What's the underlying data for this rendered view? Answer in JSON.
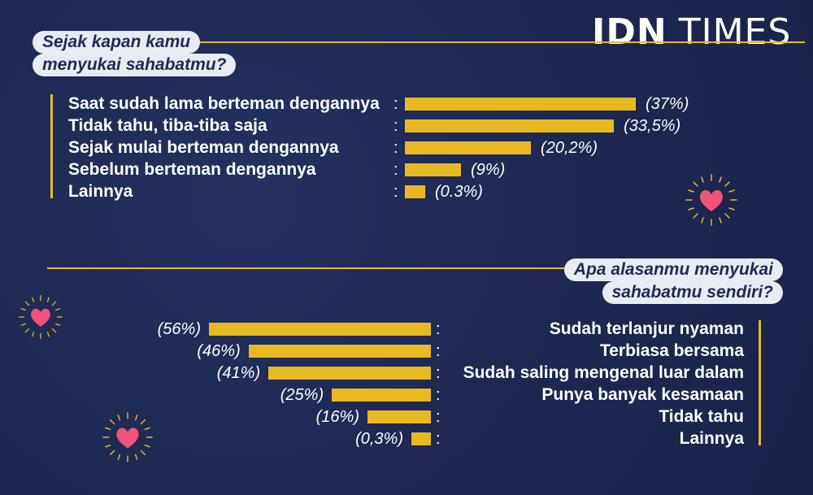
{
  "brand": {
    "logo_part1": "IDN",
    "logo_part2": "TIMES"
  },
  "chart_data": [
    {
      "type": "bar",
      "title": "Sejak kapan kamu menyukai sahabatmu?",
      "title_lines": [
        "Sejak kapan kamu",
        "menyukai sahabatmu?"
      ],
      "categories": [
        "Saat sudah lama berteman dengannya",
        "Tidak tahu, tiba-tiba saja",
        "Sejak mulai berteman dengannya",
        "Sebelum berteman dengannya",
        "Lainnya"
      ],
      "values": [
        37,
        33.5,
        20.2,
        9,
        0.3
      ],
      "value_labels": [
        "(37%)",
        "(33,5%)",
        "(20,2%)",
        "(9%)",
        "(0.3%)"
      ],
      "color": "#e8b923"
    },
    {
      "type": "bar",
      "title": "Apa alasanmu menyukai sahabatmu sendiri?",
      "title_lines": [
        "Apa alasanmu menyukai",
        "sahabatmu sendiri?"
      ],
      "categories": [
        "Sudah terlanjur nyaman",
        "Terbiasa bersama",
        "Sudah saling mengenal luar dalam",
        "Punya banyak kesamaan",
        "Tidak tahu",
        "Lainnya"
      ],
      "values": [
        56,
        46,
        41,
        25,
        16,
        0.3
      ],
      "value_labels": [
        "(56%)",
        "(46%)",
        "(41%)",
        "(25%)",
        "(16%)",
        "(0,3%)"
      ],
      "color": "#e8b923"
    }
  ],
  "colors": {
    "background": "#1f2a55",
    "accent": "#e8b923",
    "heart": "#f0537a",
    "pill": "#e9ebf2"
  },
  "icons": [
    "heart-icon"
  ]
}
